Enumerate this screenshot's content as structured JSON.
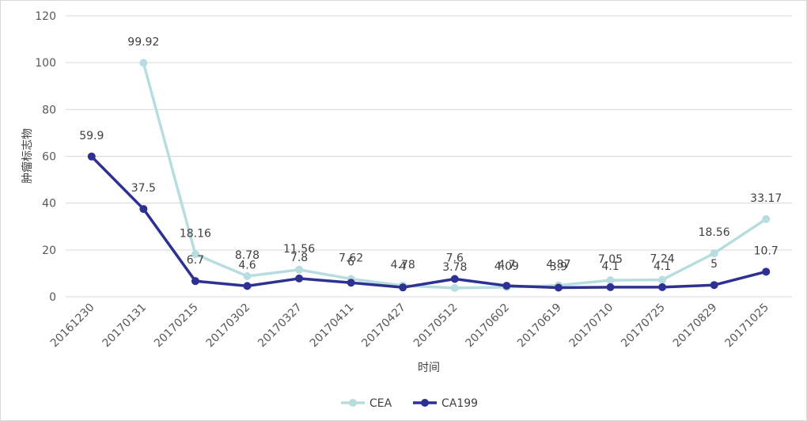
{
  "chart_data": {
    "type": "line",
    "categories": [
      "20161230",
      "20170131",
      "20170215",
      "20170302",
      "20170327",
      "20170411",
      "20170427",
      "20170512",
      "20170602",
      "20170619",
      "20170710",
      "20170725",
      "20170829",
      "20171025"
    ],
    "series": [
      {
        "name": "CEA",
        "color": "#b7dde1",
        "values": [
          null,
          99.92,
          18.16,
          8.78,
          11.56,
          7.62,
          4.78,
          3.78,
          4.09,
          4.87,
          7.05,
          7.24,
          18.56,
          33.17
        ],
        "labels": [
          "",
          "99.92",
          "18.16",
          "8.78",
          "11.56",
          "7.62",
          "4.78",
          "3.78",
          "4.09",
          "4.87",
          "7.05",
          "7.24",
          "18.56",
          "33.17"
        ]
      },
      {
        "name": "CA199",
        "color": "#2e3192",
        "values": [
          59.9,
          37.5,
          6.7,
          4.6,
          7.8,
          6,
          4,
          7.6,
          4.7,
          3.9,
          4.1,
          4.1,
          5,
          10.7
        ],
        "labels": [
          "59.9",
          "37.5",
          "6.7",
          "4.6",
          "7.8",
          "6",
          "4",
          "7.6",
          "4.7",
          "3.9",
          "4.1",
          "4.1",
          "5",
          "10.7"
        ]
      }
    ],
    "xlabel": "时间",
    "ylabel": "肿瘤标志物",
    "ylim": [
      0,
      120
    ],
    "yticks": [
      0,
      20,
      40,
      60,
      80,
      100,
      120
    ],
    "grid": true,
    "legend_position": "bottom"
  }
}
